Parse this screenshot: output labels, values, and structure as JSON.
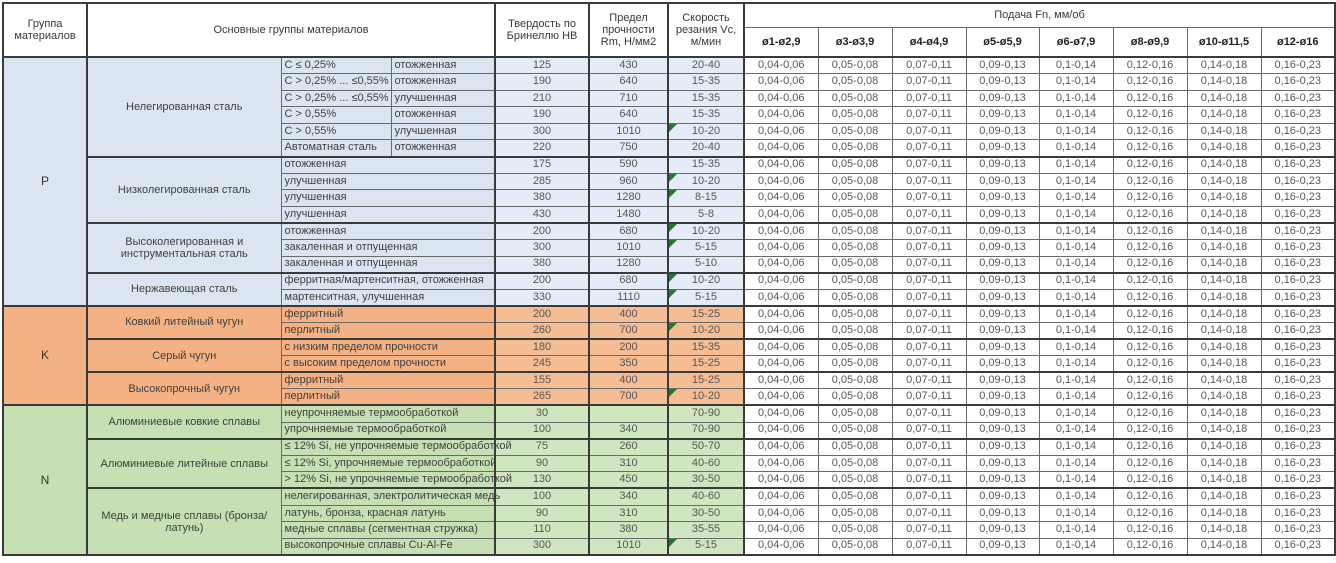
{
  "header": {
    "col_group": "Группа материалов",
    "col_main": "Основные группы материалов",
    "col_hb": "Твердость по Бринеллю HB",
    "col_rm": "Предел прочности Rm, Н/мм2",
    "col_vc": "Скорость резания Vc, м/мин",
    "col_feed": "Подача Fn, мм/об",
    "feed_cols": [
      "ø1-ø2,9",
      "ø3-ø3,9",
      "ø4-ø4,9",
      "ø5-ø5,9",
      "ø6-ø7,9",
      "ø8-ø9,9",
      "ø10-ø11,5",
      "ø12-ø16"
    ]
  },
  "feed_values": [
    "0,04-0,06",
    "0,05-0,08",
    "0,07-0,11",
    "0,09-0,13",
    "0,1-0,14",
    "0,12-0,16",
    "0,14-0,18",
    "0,16-0,23"
  ],
  "flag_color": "#1e7a2f",
  "groups": [
    {
      "letter": "P",
      "color_category": "#dbe5f1",
      "color_numeric": "#e4edf7",
      "subgroups": [
        {
          "name": "Нелегированная сталь",
          "rows": [
            {
              "d1": "C ≤ 0,25%",
              "d2": "отожженная",
              "hb": "125",
              "rm": "430",
              "vc": "20-40",
              "flag": false
            },
            {
              "d1": "C > 0,25% ... ≤0,55%",
              "d2": "отожженная",
              "hb": "190",
              "rm": "640",
              "vc": "15-35",
              "flag": false
            },
            {
              "d1": "C > 0,25% ... ≤0,55%",
              "d2": "улучшенная",
              "hb": "210",
              "rm": "710",
              "vc": "15-35",
              "flag": false
            },
            {
              "d1": "C > 0,55%",
              "d2": "отожженная",
              "hb": "190",
              "rm": "640",
              "vc": "15-35",
              "flag": false
            },
            {
              "d1": "C > 0,55%",
              "d2": "улучшенная",
              "hb": "300",
              "rm": "1010",
              "vc": "10-20",
              "flag": true
            },
            {
              "d1": "Автоматная сталь",
              "d2": "отожженная",
              "hb": "220",
              "rm": "750",
              "vc": "20-40",
              "flag": false
            }
          ]
        },
        {
          "name": "Низколегированная сталь",
          "rows": [
            {
              "d": "отожженная",
              "hb": "175",
              "rm": "590",
              "vc": "15-35",
              "flag": false
            },
            {
              "d": "улучшенная",
              "hb": "285",
              "rm": "960",
              "vc": "10-20",
              "flag": true
            },
            {
              "d": "улучшенная",
              "hb": "380",
              "rm": "1280",
              "vc": "8-15",
              "flag": true
            },
            {
              "d": "улучшенная",
              "hb": "430",
              "rm": "1480",
              "vc": "5-8",
              "flag": false
            }
          ]
        },
        {
          "name": "Высоколегированная и инструментальная сталь",
          "rows": [
            {
              "d": "отожженная",
              "hb": "200",
              "rm": "680",
              "vc": "10-20",
              "flag": true
            },
            {
              "d": "закаленная и отпущенная",
              "hb": "300",
              "rm": "1010",
              "vc": "5-15",
              "flag": true
            },
            {
              "d": "закаленная и отпущенная",
              "hb": "380",
              "rm": "1280",
              "vc": "5-10",
              "flag": false
            }
          ]
        },
        {
          "name": "Нержавеющая сталь",
          "rows": [
            {
              "d": "ферритная/мартенситная, отожженная",
              "hb": "200",
              "rm": "680",
              "vc": "10-20",
              "flag": true
            },
            {
              "d": "мартенситная, улучшенная",
              "hb": "330",
              "rm": "1110",
              "vc": "5-15",
              "flag": true
            }
          ]
        }
      ]
    },
    {
      "letter": "K",
      "color_category": "#f4b183",
      "color_numeric": "#f6bc93",
      "subgroups": [
        {
          "name": "Ковкий литейный чугун",
          "rows": [
            {
              "d": "ферритный",
              "hb": "200",
              "rm": "400",
              "vc": "15-25",
              "flag": false
            },
            {
              "d": "перлитный",
              "hb": "260",
              "rm": "700",
              "vc": "10-20",
              "flag": true
            }
          ]
        },
        {
          "name": "Серый чугун",
          "rows": [
            {
              "d": "с низким пределом прочности",
              "hb": "180",
              "rm": "200",
              "vc": "15-35",
              "flag": false
            },
            {
              "d": "с высоким пределом прочности",
              "hb": "245",
              "rm": "350",
              "vc": "15-25",
              "flag": false
            }
          ]
        },
        {
          "name": "Высокопрочный чугун",
          "rows": [
            {
              "d": "ферритный",
              "hb": "155",
              "rm": "400",
              "vc": "15-25",
              "flag": false
            },
            {
              "d": "перлитный",
              "hb": "265",
              "rm": "700",
              "vc": "10-20",
              "flag": true
            }
          ]
        }
      ]
    },
    {
      "letter": "N",
      "color_category": "#c6e0b4",
      "color_numeric": "#d0e6c0",
      "subgroups": [
        {
          "name": "Алюминиевые ковкие сплавы",
          "rows": [
            {
              "d": "неупрочняемые термообработкой",
              "hb": "30",
              "rm": "",
              "vc": "70-90",
              "flag": false
            },
            {
              "d": "упрочняемые термообработкой",
              "hb": "100",
              "rm": "340",
              "vc": "70-90",
              "flag": false
            }
          ]
        },
        {
          "name": "Алюминиевые литейные сплавы",
          "rows": [
            {
              "d": "≤ 12% Si, не упрочняемые термообработкой",
              "hb": "75",
              "rm": "260",
              "vc": "50-70",
              "flag": false
            },
            {
              "d": "≤ 12% Si, упрочняемые термообработкой",
              "hb": "90",
              "rm": "310",
              "vc": "40-60",
              "flag": false
            },
            {
              "d": "> 12% Si, не упрочняемые термообработкой",
              "hb": "130",
              "rm": "450",
              "vc": "30-50",
              "flag": false
            }
          ]
        },
        {
          "name": "Медь и медные сплавы (бронза/латунь)",
          "rows": [
            {
              "d": "нелегированная, электролитическая медь",
              "hb": "100",
              "rm": "340",
              "vc": "40-60",
              "flag": false
            },
            {
              "d": "латунь, бронза, красная латунь",
              "hb": "90",
              "rm": "310",
              "vc": "30-50",
              "flag": false
            },
            {
              "d": "медные сплавы (сегментная стружка)",
              "hb": "110",
              "rm": "380",
              "vc": "35-55",
              "flag": false
            },
            {
              "d": "высокопрочные сплавы Cu-Al-Fe",
              "hb": "300",
              "rm": "1010",
              "vc": "5-15",
              "flag": true
            }
          ]
        }
      ]
    }
  ]
}
